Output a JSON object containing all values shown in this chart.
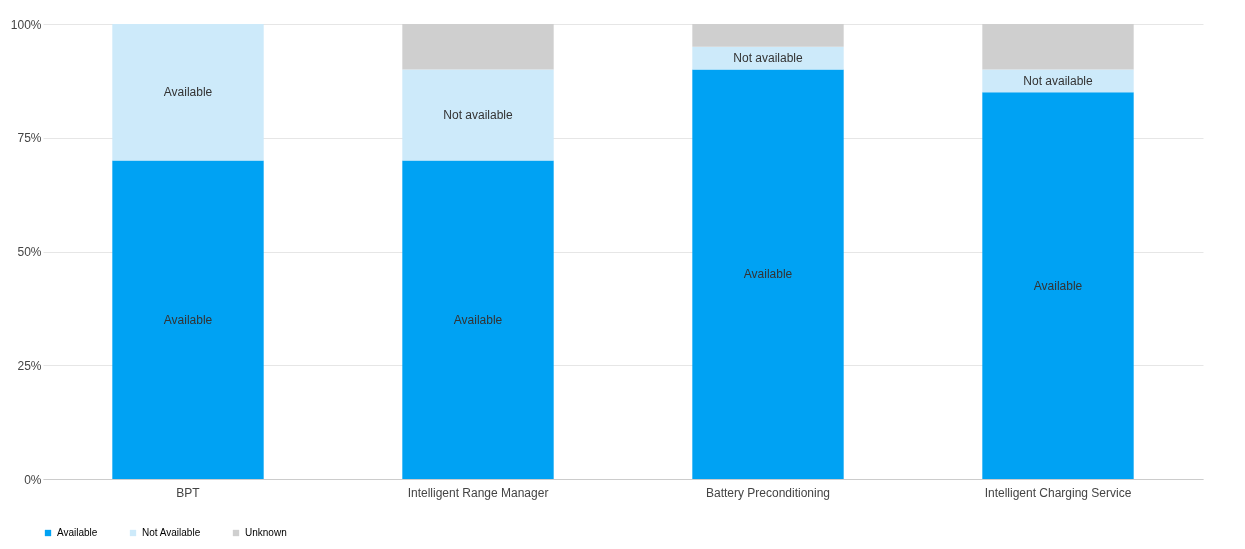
{
  "chart_data": {
    "type": "bar",
    "stacked": true,
    "categories": [
      "BPT",
      "Intelligent Range Manager",
      "Battery Preconditioning",
      "Intelligent Charging Service"
    ],
    "series": [
      {
        "name": "Available",
        "color": "#00a2f3",
        "values": [
          70,
          70,
          90,
          85
        ],
        "value_labels": [
          "Available",
          "Available",
          "Available",
          "Available"
        ]
      },
      {
        "name": "Not Available",
        "color": "#cdeafa",
        "values": [
          30,
          20,
          5,
          5
        ],
        "value_labels": [
          "Available",
          "Not available",
          "Not available",
          "Not available"
        ]
      },
      {
        "name": "Unknown",
        "color": "#cfcfcf",
        "values": [
          0,
          10,
          5,
          10
        ]
      }
    ],
    "ylim": [
      0,
      100
    ],
    "yticks": [
      {
        "value": 0,
        "label": "0%"
      },
      {
        "value": 25,
        "label": "25%"
      },
      {
        "value": 50,
        "label": "50%"
      },
      {
        "value": 75,
        "label": "75%"
      },
      {
        "value": 100,
        "label": "100%"
      }
    ],
    "grid": "y",
    "legend": "bottom"
  }
}
